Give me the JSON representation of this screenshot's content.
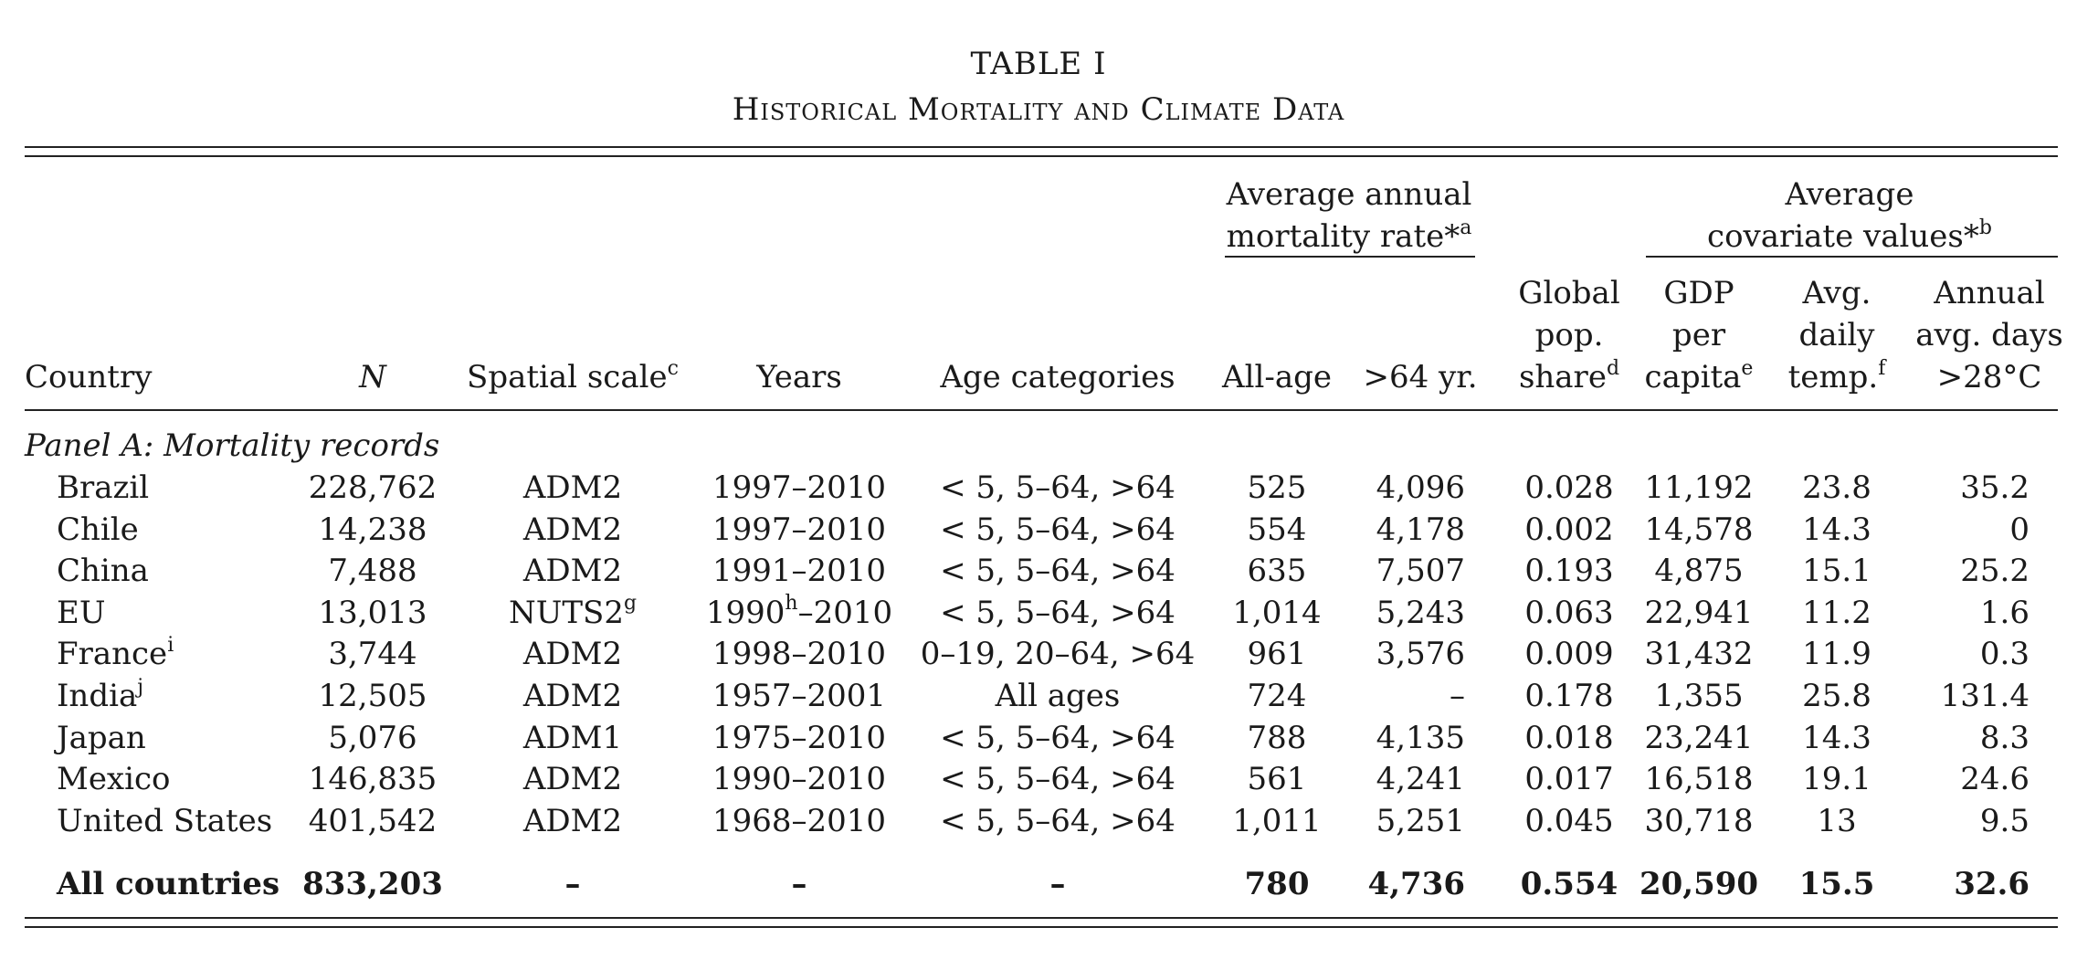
{
  "table_title": "TABLE I",
  "table_subtitle": "Historical Mortality and Climate Data",
  "header": {
    "mortality_group": [
      "Average annual",
      "mortality rate*"
    ],
    "mortality_group_sup": "a",
    "covariate_group": [
      "Average",
      "covariate values*"
    ],
    "covariate_group_sup": "b",
    "country": "Country",
    "n": "N",
    "spatial_scale": "Spatial scale",
    "spatial_scale_sup": "c",
    "years": "Years",
    "age_categories": "Age categories",
    "all_age": "All-age",
    "over64": ">64 yr.",
    "global_pop": [
      "Global",
      "pop.",
      "share"
    ],
    "global_pop_sup": "d",
    "gdp": [
      "GDP",
      "per",
      "capita"
    ],
    "gdp_sup": "e",
    "temp": [
      "Avg.",
      "daily",
      "temp."
    ],
    "temp_sup": "f",
    "days28": [
      "Annual",
      "avg. days",
      ">28°C"
    ]
  },
  "panel_label": "Panel A: Mortality records",
  "rows": [
    {
      "country": "Brazil",
      "country_sup": "",
      "n": "228,762",
      "scale": "ADM2",
      "scale_sup": "",
      "years": "1997–2010",
      "years_sup": "",
      "years_rest": "",
      "ages": "< 5, 5–64, >64",
      "all_age": "525",
      "over64": "4,096",
      "pop": "0.028",
      "gdp": "11,192",
      "temp": "23.8",
      "days": "35.2"
    },
    {
      "country": "Chile",
      "country_sup": "",
      "n": "14,238",
      "scale": "ADM2",
      "scale_sup": "",
      "years": "1997–2010",
      "years_sup": "",
      "years_rest": "",
      "ages": "< 5, 5–64, >64",
      "all_age": "554",
      "over64": "4,178",
      "pop": "0.002",
      "gdp": "14,578",
      "temp": "14.3",
      "days": "0"
    },
    {
      "country": "China",
      "country_sup": "",
      "n": "7,488",
      "scale": "ADM2",
      "scale_sup": "",
      "years": "1991–2010",
      "years_sup": "",
      "years_rest": "",
      "ages": "< 5, 5–64, >64",
      "all_age": "635",
      "over64": "7,507",
      "pop": "0.193",
      "gdp": "4,875",
      "temp": "15.1",
      "days": "25.2"
    },
    {
      "country": "EU",
      "country_sup": "",
      "n": "13,013",
      "scale": "NUTS2",
      "scale_sup": "g",
      "years": "1990",
      "years_sup": "h",
      "years_rest": "–2010",
      "ages": "< 5, 5–64, >64",
      "all_age": "1,014",
      "over64": "5,243",
      "pop": "0.063",
      "gdp": "22,941",
      "temp": "11.2",
      "days": "1.6"
    },
    {
      "country": "France",
      "country_sup": "i",
      "n": "3,744",
      "scale": "ADM2",
      "scale_sup": "",
      "years": "1998–2010",
      "years_sup": "",
      "years_rest": "",
      "ages": "0–19, 20–64, >64",
      "all_age": "961",
      "over64": "3,576",
      "pop": "0.009",
      "gdp": "31,432",
      "temp": "11.9",
      "days": "0.3"
    },
    {
      "country": "India",
      "country_sup": "j",
      "n": "12,505",
      "scale": "ADM2",
      "scale_sup": "",
      "years": "1957–2001",
      "years_sup": "",
      "years_rest": "",
      "ages": "All ages",
      "all_age": "724",
      "over64": "–",
      "pop": "0.178",
      "gdp": "1,355",
      "temp": "25.8",
      "days": "131.4"
    },
    {
      "country": "Japan",
      "country_sup": "",
      "n": "5,076",
      "scale": "ADM1",
      "scale_sup": "",
      "years": "1975–2010",
      "years_sup": "",
      "years_rest": "",
      "ages": "< 5, 5–64, >64",
      "all_age": "788",
      "over64": "4,135",
      "pop": "0.018",
      "gdp": "23,241",
      "temp": "14.3",
      "days": "8.3"
    },
    {
      "country": "Mexico",
      "country_sup": "",
      "n": "146,835",
      "scale": "ADM2",
      "scale_sup": "",
      "years": "1990–2010",
      "years_sup": "",
      "years_rest": "",
      "ages": "< 5, 5–64, >64",
      "all_age": "561",
      "over64": "4,241",
      "pop": "0.017",
      "gdp": "16,518",
      "temp": "19.1",
      "days": "24.6"
    },
    {
      "country": "United States",
      "country_sup": "",
      "n": "401,542",
      "scale": "ADM2",
      "scale_sup": "",
      "years": "1968–2010",
      "years_sup": "",
      "years_rest": "",
      "ages": "< 5, 5–64, >64",
      "all_age": "1,011",
      "over64": "5,251",
      "pop": "0.045",
      "gdp": "30,718",
      "temp": "13",
      "days": "9.5"
    }
  ],
  "total": {
    "country": "All countries",
    "n": "833,203",
    "scale": "–",
    "years": "–",
    "ages": "–",
    "all_age": "780",
    "over64": "4,736",
    "pop": "0.554",
    "gdp": "20,590",
    "temp": "15.5",
    "days": "32.6"
  }
}
